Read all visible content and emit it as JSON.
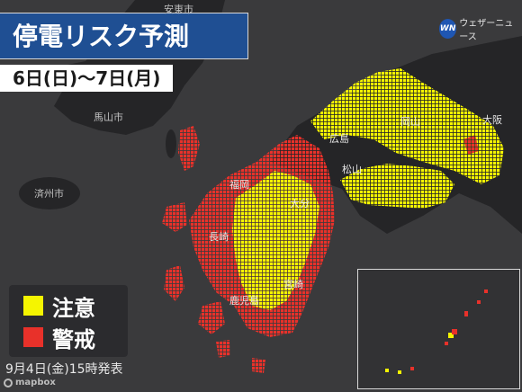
{
  "title": "停電リスク予測",
  "date_range": "6日(日)〜7日(月)",
  "issued": "9月4日(金)15時発表",
  "attribution": "mapbox",
  "brand": {
    "logo_text": "ウェザーニュース",
    "logo_icon": "wn-logo-icon"
  },
  "legend": [
    {
      "label": "注意",
      "color": "#f5f500"
    },
    {
      "label": "警戒",
      "color": "#e8312a"
    }
  ],
  "cities": {
    "anju": "安東市",
    "masan": "馬山市",
    "jeju": "済州市",
    "fukuoka": "福岡",
    "nagasaki": "長崎",
    "oita": "大分",
    "kagoshima": "鹿児島",
    "miyazaki": "宮崎",
    "hiroshima": "広島",
    "matsuyama": "松山",
    "okayama": "岡山",
    "osaka": "大阪"
  },
  "colors": {
    "caution": "#f5f500",
    "warning": "#e8312a",
    "land": "#252527",
    "sea": "#3a3a3c"
  }
}
